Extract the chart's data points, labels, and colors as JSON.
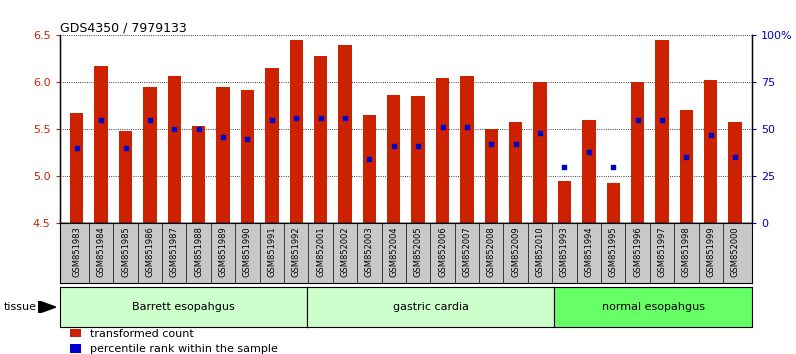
{
  "title": "GDS4350 / 7979133",
  "samples": [
    "GSM851983",
    "GSM851984",
    "GSM851985",
    "GSM851986",
    "GSM851987",
    "GSM851988",
    "GSM851989",
    "GSM851990",
    "GSM851991",
    "GSM851992",
    "GSM852001",
    "GSM852002",
    "GSM852003",
    "GSM852004",
    "GSM852005",
    "GSM852006",
    "GSM852007",
    "GSM852008",
    "GSM852009",
    "GSM852010",
    "GSM851993",
    "GSM851994",
    "GSM851995",
    "GSM851996",
    "GSM851997",
    "GSM851998",
    "GSM851999",
    "GSM852000"
  ],
  "red_values": [
    5.67,
    6.17,
    5.48,
    5.95,
    6.07,
    5.53,
    5.95,
    5.92,
    6.15,
    6.45,
    6.28,
    6.4,
    5.65,
    5.87,
    5.85,
    6.05,
    6.07,
    5.5,
    5.58,
    6.0,
    4.95,
    5.6,
    4.93,
    6.0,
    6.45,
    5.7,
    6.02,
    5.58
  ],
  "blue_percentiles": [
    40,
    55,
    40,
    55,
    50,
    50,
    46,
    45,
    55,
    56,
    56,
    56,
    34,
    41,
    41,
    51,
    51,
    42,
    42,
    48,
    30,
    38,
    30,
    55,
    55,
    35,
    47,
    35
  ],
  "groups": [
    {
      "label": "Barrett esopahgus",
      "start": 0,
      "end": 9,
      "color": "#ccffcc"
    },
    {
      "label": "gastric cardia",
      "start": 10,
      "end": 19,
      "color": "#ccffcc"
    },
    {
      "label": "normal esopahgus",
      "start": 20,
      "end": 27,
      "color": "#66ff66"
    }
  ],
  "ylim_left": [
    4.5,
    6.5
  ],
  "ylim_right": [
    0,
    100
  ],
  "bar_color": "#cc2200",
  "dot_color": "#0000cc",
  "bar_bottom": 4.5,
  "grid_yticks_left": [
    4.5,
    5.0,
    5.5,
    6.0,
    6.5
  ],
  "right_yticks": [
    0,
    25,
    50,
    75,
    100
  ],
  "right_yticklabels": [
    "0",
    "25",
    "50",
    "75",
    "100%"
  ],
  "bg_color": "#ffffff",
  "xtick_bg_color": "#c8c8c8",
  "group_border_color": "#000000"
}
